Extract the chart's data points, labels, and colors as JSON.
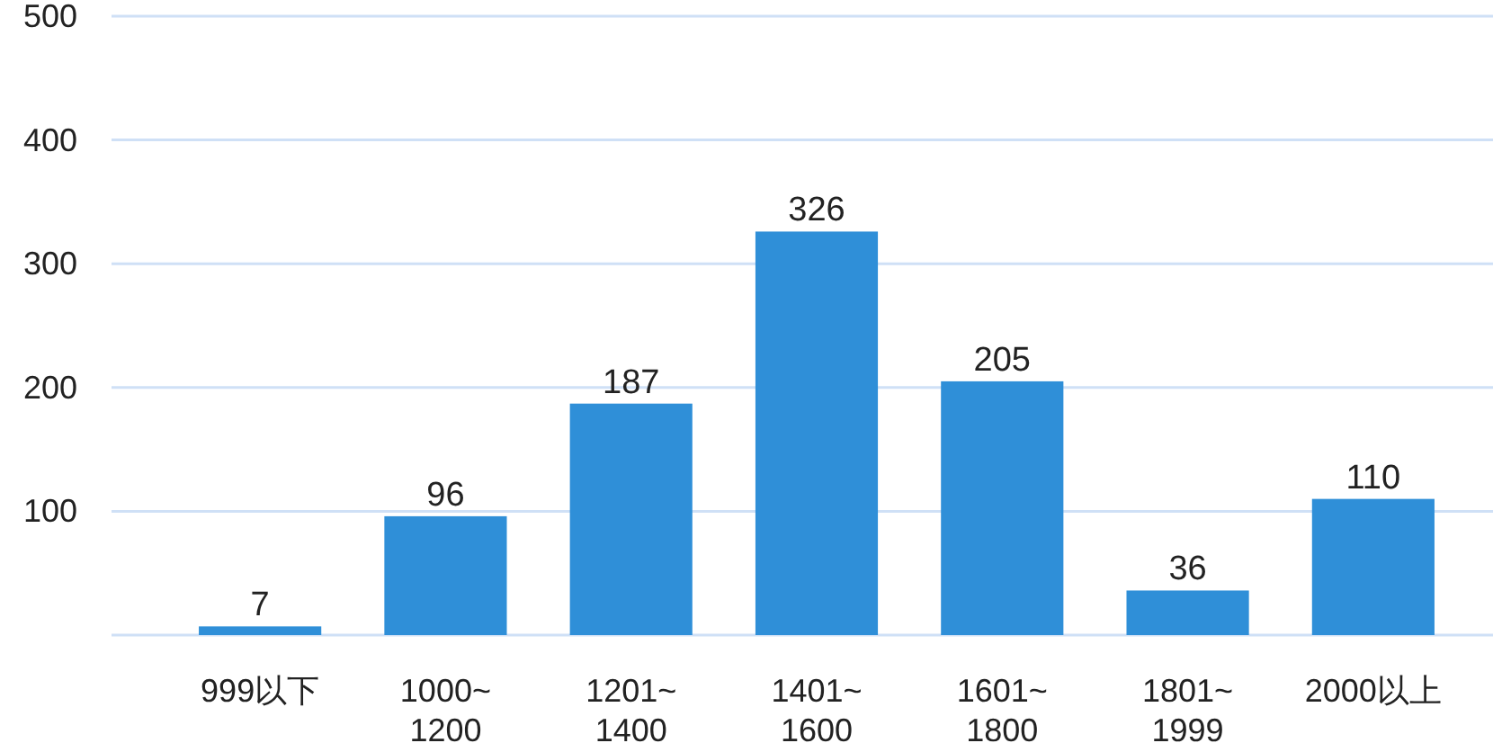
{
  "chart_data": {
    "type": "bar",
    "categories": [
      "999以下",
      "1000~\n1200",
      "1201~\n1400",
      "1401~\n1600",
      "1601~\n1800",
      "1801~\n1999",
      "2000以上"
    ],
    "values": [
      7,
      96,
      187,
      326,
      205,
      36,
      110
    ],
    "color": "#2f8fd8",
    "ylim": [
      0,
      500
    ],
    "yticks": [
      {
        "value": 0,
        "label": null
      },
      100,
      200,
      300,
      400,
      500
    ],
    "grid": "y",
    "data_labels": true
  }
}
